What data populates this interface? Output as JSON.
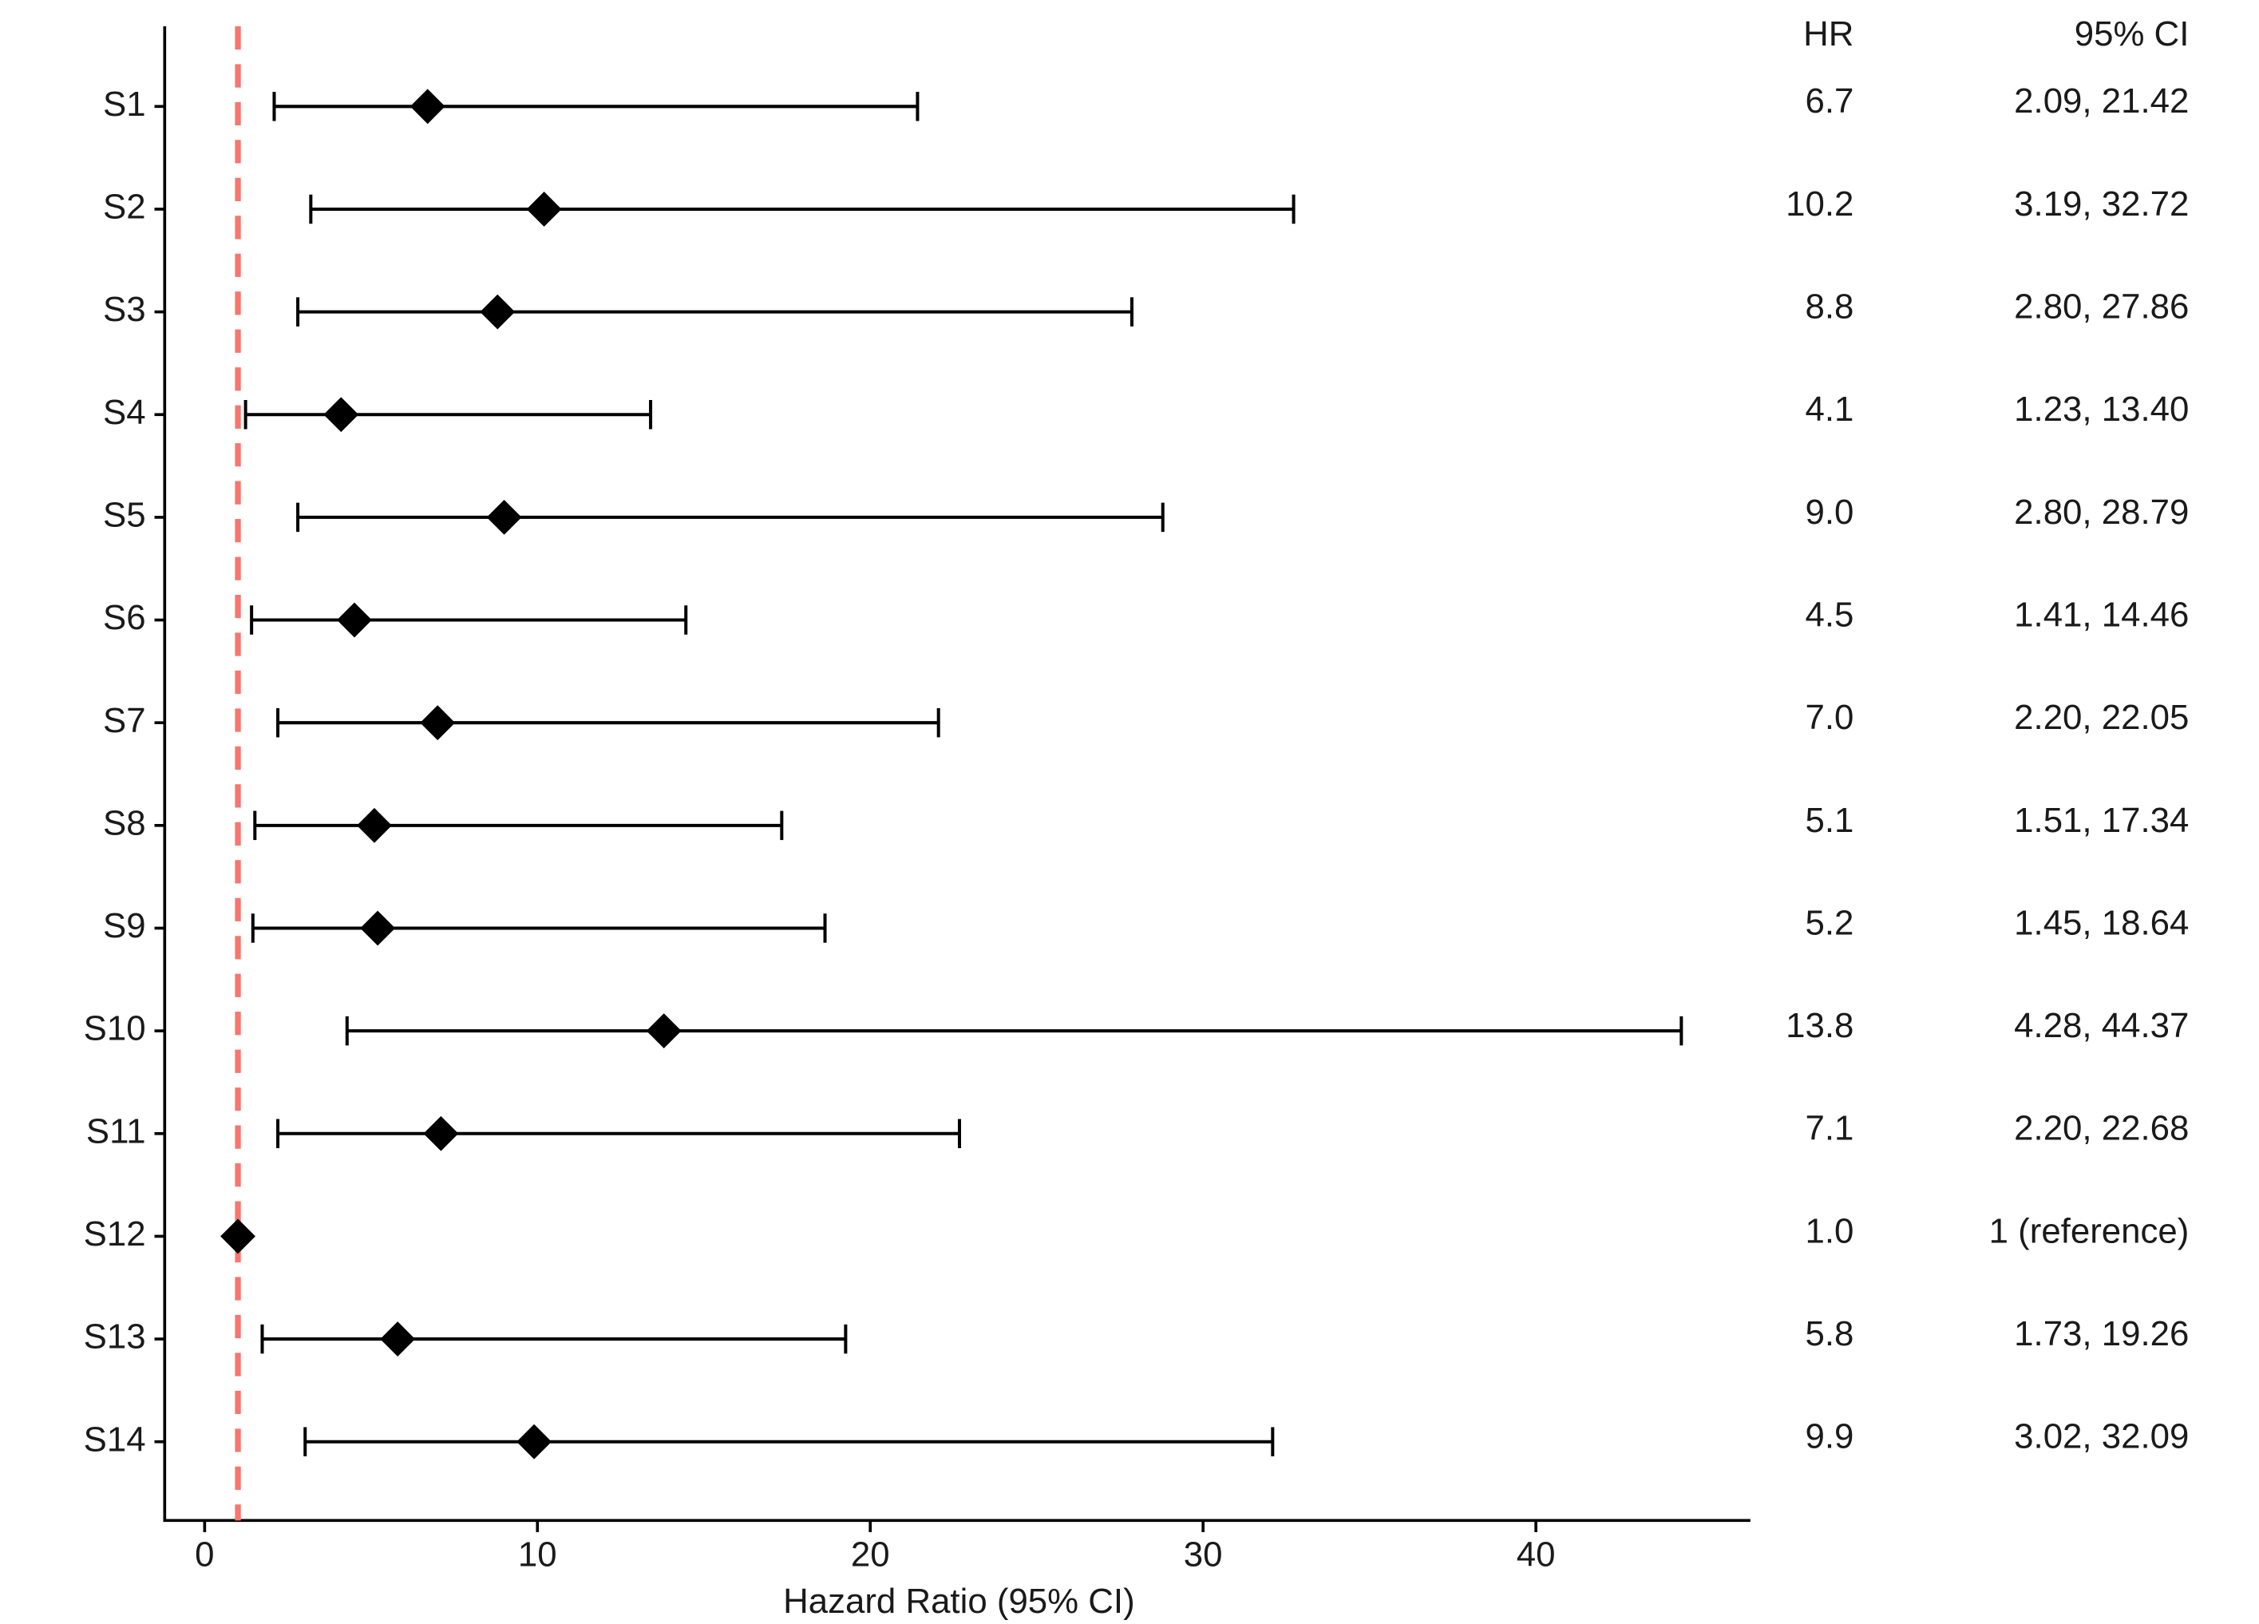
{
  "chart_data": {
    "type": "forest",
    "header_value": "HR",
    "header_ci": "95% CI",
    "xlabel": "Hazard Ratio (95% CI)",
    "categories": [
      "S1",
      "S2",
      "S3",
      "S4",
      "S5",
      "S6",
      "S7",
      "S8",
      "S9",
      "S10",
      "S11",
      "S12",
      "S13",
      "S14"
    ],
    "values": [
      6.7,
      10.2,
      8.8,
      4.1,
      9.0,
      4.5,
      7.0,
      5.1,
      5.2,
      13.8,
      7.1,
      1.0,
      5.8,
      9.9
    ],
    "value_labels": [
      "6.7",
      "10.2",
      "8.8",
      "4.1",
      "9.0",
      "4.5",
      "7.0",
      "5.1",
      "5.2",
      "13.8",
      "7.1",
      "1.0",
      "5.8",
      "9.9"
    ],
    "lower": [
      2.09,
      3.19,
      2.8,
      1.23,
      2.8,
      1.41,
      2.2,
      1.51,
      1.45,
      4.28,
      2.2,
      null,
      1.73,
      3.02
    ],
    "upper": [
      21.42,
      32.72,
      27.86,
      13.4,
      28.79,
      14.46,
      22.05,
      17.34,
      18.64,
      44.37,
      22.68,
      null,
      19.26,
      32.09
    ],
    "ci_labels": [
      "2.09, 21.42",
      "3.19, 32.72",
      "2.80, 27.86",
      "1.23, 13.40",
      "2.80, 28.79",
      "1.41, 14.46",
      "2.20, 22.05",
      "1.51, 17.34",
      "1.45, 18.64",
      "4.28, 44.37",
      "2.20, 22.68",
      "1 (reference)",
      "1.73, 19.26",
      "3.02, 32.09"
    ],
    "xlim": [
      -1.2,
      46.4
    ],
    "xticks": [
      0,
      10,
      20,
      30,
      40
    ],
    "ref_line": 1,
    "ref_color": "#F8766D",
    "color": "#000000"
  }
}
